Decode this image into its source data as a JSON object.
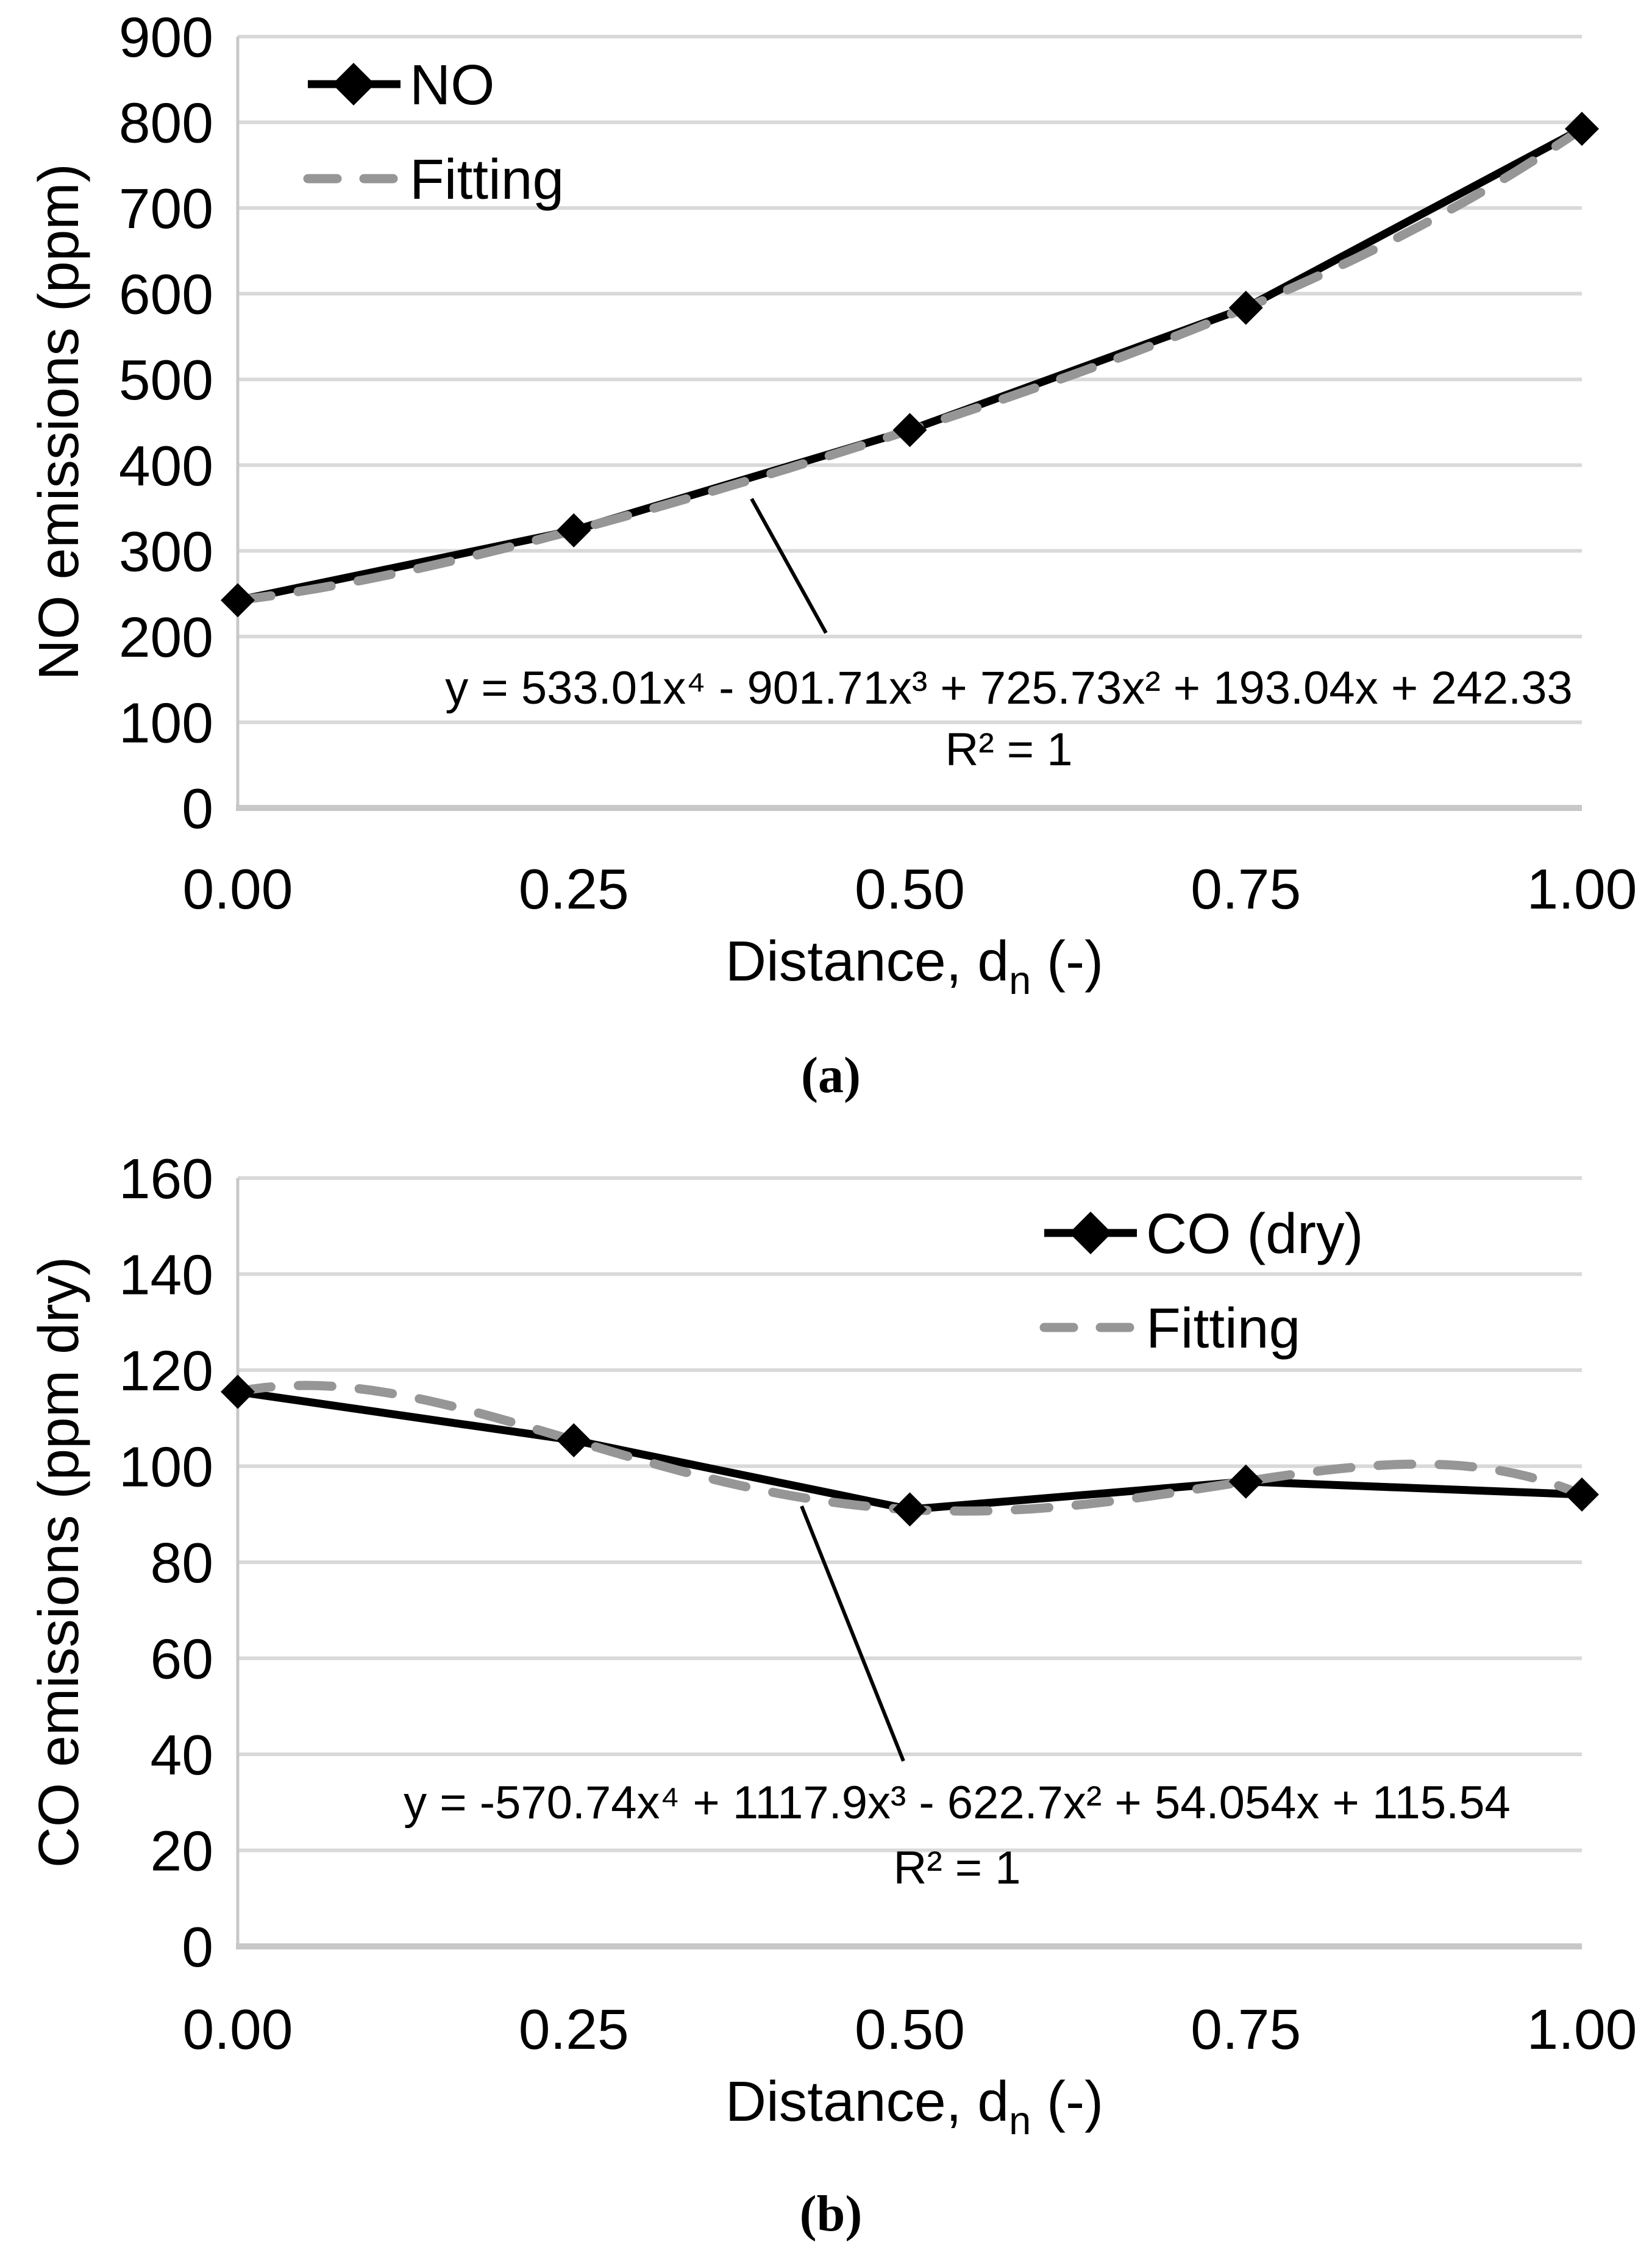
{
  "page": {
    "background": "#ffffff"
  },
  "colors": {
    "series_line": "#000000",
    "fit_line": "#969696",
    "gridline": "#d9d9d9",
    "axis_line": "#c8c8c8",
    "text": "#000000"
  },
  "chart_data": [
    {
      "id": "a",
      "type": "line",
      "title": "",
      "caption": "(a)",
      "xlabel": {
        "main": "Distance, d",
        "sub": "n",
        "end": " (-)"
      },
      "ylabel": "NO emissions (ppm)",
      "xlim": [
        0,
        1
      ],
      "ylim": [
        0,
        900
      ],
      "grid": "horizontal",
      "xticks": {
        "values": [
          0,
          0.25,
          0.5,
          0.75,
          1
        ],
        "labels": [
          "0.00",
          "0.25",
          "0.50",
          "0.75",
          "1.00"
        ]
      },
      "yticks": {
        "values": [
          0,
          100,
          200,
          300,
          400,
          500,
          600,
          700,
          800,
          900
        ],
        "labels": [
          "0",
          "100",
          "200",
          "300",
          "400",
          "500",
          "600",
          "700",
          "800",
          "900"
        ]
      },
      "x": [
        0,
        0.25,
        0.5,
        0.75,
        1.0
      ],
      "series": [
        {
          "name": "NO",
          "style": "solid-diamond",
          "values": [
            242.3,
            323.9,
            440.9,
            583.6,
            792.4
          ]
        },
        {
          "name": "Fitting",
          "style": "dashed",
          "fit_coeffs": [
            533.01,
            -901.71,
            725.73,
            193.04,
            242.33
          ]
        }
      ],
      "legend": {
        "position": "top-left",
        "entries": [
          {
            "label": "NO"
          },
          {
            "label": "Fitting"
          }
        ]
      },
      "annotation": {
        "line1": "y = 533.01x⁴ - 901.71x³ + 725.73x² + 193.04x + 242.33",
        "line2": "R² = 1"
      }
    },
    {
      "id": "b",
      "type": "line",
      "title": "",
      "caption": "(b)",
      "xlabel": {
        "main": "Distance, d",
        "sub": "n",
        "end": " (-)"
      },
      "ylabel": "CO emissions (ppm dry)",
      "xlim": [
        0,
        1
      ],
      "ylim": [
        0,
        160
      ],
      "grid": "horizontal",
      "xticks": {
        "values": [
          0,
          0.25,
          0.5,
          0.75,
          1
        ],
        "labels": [
          "0.00",
          "0.25",
          "0.50",
          "0.75",
          "1.00"
        ]
      },
      "yticks": {
        "values": [
          0,
          20,
          40,
          60,
          80,
          100,
          120,
          140,
          160
        ],
        "labels": [
          "0",
          "20",
          "40",
          "60",
          "80",
          "100",
          "120",
          "140",
          "160"
        ]
      },
      "x": [
        0,
        0.25,
        0.5,
        0.75,
        1.0
      ],
      "series": [
        {
          "name": "CO (dry)",
          "style": "solid-diamond",
          "values": [
            115.5,
            105.4,
            91.0,
            96.8,
            94.1
          ]
        },
        {
          "name": "Fitting",
          "style": "dashed",
          "fit_coeffs": [
            -570.74,
            1117.9,
            -622.7,
            54.054,
            115.54
          ]
        }
      ],
      "legend": {
        "position": "top-right",
        "entries": [
          {
            "label": "CO (dry)"
          },
          {
            "label": "Fitting"
          }
        ]
      },
      "annotation": {
        "line1": "y = -570.74x⁴ + 1117.9x³ - 622.7x² + 54.054x + 115.54",
        "line2": "R² = 1"
      }
    }
  ]
}
